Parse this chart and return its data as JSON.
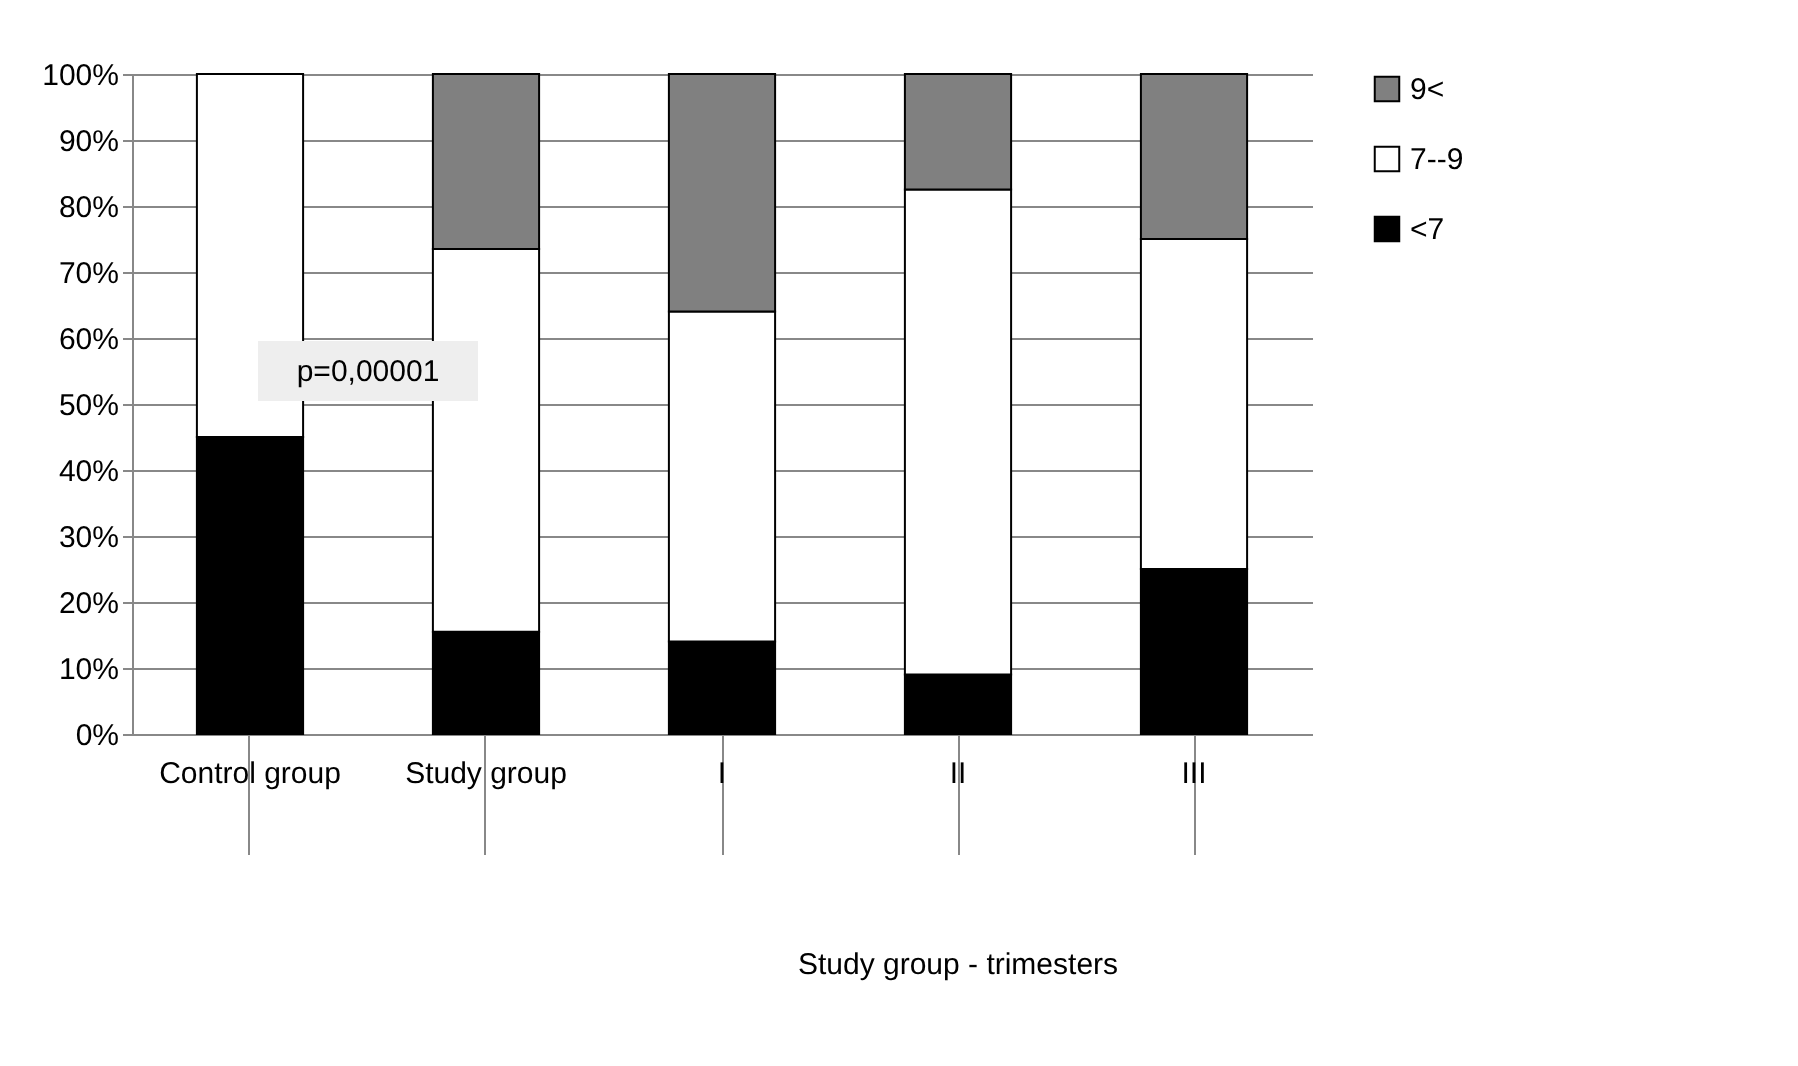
{
  "chart_data": {
    "type": "bar",
    "stacked": true,
    "categories": [
      "Control group",
      "Study group",
      "I",
      "II",
      "III"
    ],
    "series": [
      {
        "name": "<7",
        "color": "#000000",
        "values": [
          45,
          15.5,
          14,
          9,
          25
        ]
      },
      {
        "name": "7--9",
        "color": "#ffffff",
        "values": [
          55,
          58,
          50,
          73.5,
          50
        ]
      },
      {
        "name": "9<",
        "color": "#808080",
        "values": [
          null,
          26.5,
          36,
          17.5,
          25
        ]
      }
    ],
    "ylim": [
      0,
      100
    ],
    "yticks": [
      {
        "value": 0,
        "label": "0%"
      },
      {
        "value": 10,
        "label": "10%"
      },
      {
        "value": 20,
        "label": "20%"
      },
      {
        "value": 30,
        "label": "30%"
      },
      {
        "value": 40,
        "label": "40%"
      },
      {
        "value": 50,
        "label": "50%"
      },
      {
        "value": 60,
        "label": "60%"
      },
      {
        "value": 70,
        "label": "70%"
      },
      {
        "value": 80,
        "label": "80%"
      },
      {
        "value": 90,
        "label": "90%"
      },
      {
        "value": 100,
        "label": "100%"
      }
    ],
    "grid": "y",
    "legend": "right",
    "annotations": [
      "p=0,00001",
      "Study group - trimesters"
    ]
  }
}
